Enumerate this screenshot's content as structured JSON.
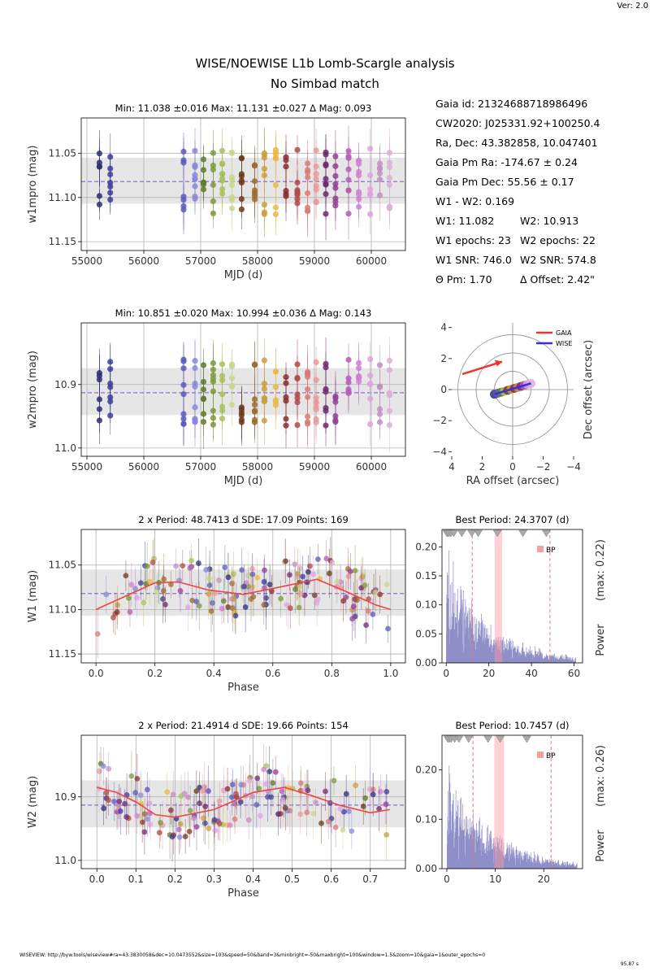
{
  "version": "Ver: 2.0",
  "title": "WISE/NOEWISE L1b Lomb-Scargle analysis",
  "subtitle": "No Simbad match",
  "footer_url": "WISEVIEW: http://byw.tools/wiseview#ra=43.3830058&dec=10.0473552&size=103&speed=50&band=3&minbright=-50&maxbright=100&window=1.5&zoom=10&gaia=1&outer_epochs=0",
  "runtime": "95.87 s",
  "info": [
    {
      "id": "gaia-id",
      "text": "Gaia id: 21324688718986496"
    },
    {
      "id": "cw2020",
      "text": "CW2020: J025331.92+100250.4"
    },
    {
      "id": "radec",
      "text": "Ra, Dec: 43.382858, 10.047401"
    },
    {
      "id": "pmra",
      "text": "Gaia Pm Ra: -174.67 ± 0.24"
    },
    {
      "id": "pmdec",
      "text": "Gaia Pm Dec: 55.56 ± 0.17"
    },
    {
      "id": "w1w2",
      "text": "W1 - W2: 0.169"
    },
    {
      "id": "w1",
      "text": "W1: 11.082"
    },
    {
      "id": "w2",
      "text": "W2: 10.913"
    },
    {
      "id": "w1ep",
      "text": "W1 epochs: 23"
    },
    {
      "id": "w2ep",
      "text": "W2 epochs: 22"
    },
    {
      "id": "w1snr",
      "text": "W1 SNR: 746.0"
    },
    {
      "id": "w2snr",
      "text": "W2 SNR: 574.8"
    },
    {
      "id": "thetapm",
      "text": "Θ Pm: 1.70"
    },
    {
      "id": "offset",
      "text": "Δ Offset: 2.42\""
    }
  ],
  "chart_data": [
    {
      "id": "w1-lc",
      "type": "scatter",
      "title": "Min: 11.038 ±0.016     Max: 11.131 ±0.027     Δ Mag: 0.093",
      "xlabel": "MJD (d)",
      "ylabel": "w1mpro (mag)",
      "xlim": [
        54900,
        60600
      ],
      "ylim": [
        11.16,
        11.01
      ],
      "y_inverted": true,
      "xticks": [
        55000,
        56000,
        57000,
        58000,
        59000,
        60000
      ],
      "yticks": [
        11.05,
        11.1,
        11.15
      ],
      "ytick_labels": [
        "11.05",
        "11.10",
        "11.15"
      ],
      "mean": 11.082,
      "band": [
        11.055,
        11.107
      ],
      "grid": true
    },
    {
      "id": "w2-lc",
      "type": "scatter",
      "title": "Min: 10.851 ±0.020     Max: 10.994 ±0.036     Δ Mag: 0.143",
      "xlabel": "MJD (d)",
      "ylabel": "w2mpro (mag)",
      "xlim": [
        54900,
        60600
      ],
      "ylim": [
        11.013,
        10.803
      ],
      "y_inverted": true,
      "xticks": [
        55000,
        56000,
        57000,
        58000,
        59000,
        60000
      ],
      "yticks": [
        10.9,
        11.0
      ],
      "ytick_labels": [
        "10.9",
        "11.0"
      ],
      "mean": 10.913,
      "band": [
        10.874,
        10.948
      ],
      "grid": true
    },
    {
      "id": "offset-plot",
      "type": "scatter",
      "xlabel": "RA offset (arcsec)",
      "ylabel": "Dec offset (arcsec)",
      "xlim": [
        4,
        -4
      ],
      "ylim": [
        -4.3,
        4.3
      ],
      "ticks": [
        -4,
        -2,
        0,
        2,
        4
      ],
      "tick_labels": [
        "−4",
        "−2",
        "0",
        "2",
        "4"
      ],
      "x_tick_labels": [
        "4",
        "2",
        "0",
        "−2",
        "−4"
      ],
      "rings": [
        1,
        2,
        3
      ],
      "legend": [
        {
          "name": "GAIA",
          "color": "#ee3333"
        },
        {
          "name": "WISE",
          "color": "#3333dd"
        }
      ],
      "gaia_vector": {
        "from": [
          3.3,
          1.0
        ],
        "to": [
          0.7,
          1.8
        ]
      },
      "wise_vector": {
        "from": [
          1.2,
          -0.3
        ],
        "to": [
          -1.2,
          0.4
        ]
      }
    },
    {
      "id": "w1-phase",
      "type": "scatter",
      "title": "2 x Period: 48.7413 d    SDE: 17.09    Points: 169",
      "xlabel": "Phase",
      "ylabel": "W1 (mag)",
      "xlim": [
        -0.05,
        1.05
      ],
      "ylim": [
        11.16,
        11.01
      ],
      "y_inverted": true,
      "xticks": [
        0,
        0.2,
        0.4,
        0.6,
        0.8,
        1.0
      ],
      "xtick_labels": [
        "0.0",
        "0.2",
        "0.4",
        "0.6",
        "0.8",
        "1.0"
      ],
      "yticks": [
        11.05,
        11.1,
        11.15
      ],
      "ytick_labels": [
        "11.05",
        "11.10",
        "11.15"
      ],
      "mean": 11.082,
      "band": [
        11.055,
        11.107
      ],
      "model": {
        "x": [
          0,
          0.1,
          0.2,
          0.28,
          0.38,
          0.5,
          0.62,
          0.75,
          0.85,
          0.95,
          1.0
        ],
        "y": [
          11.1,
          11.085,
          11.07,
          11.069,
          11.078,
          11.083,
          11.075,
          11.066,
          11.08,
          11.095,
          11.1
        ]
      }
    },
    {
      "id": "w1-periodogram",
      "type": "line",
      "title": "Best Period: 24.3707 (d)",
      "xlabel": "",
      "ylabel": "Power",
      "ylabel2": "(max: 0.22)",
      "xlim": [
        -2,
        64
      ],
      "ylim": [
        0,
        0.23
      ],
      "xticks": [
        0,
        20,
        40,
        60
      ],
      "xtick_labels": [
        "0",
        "20",
        "40",
        "60"
      ],
      "yticks": [
        0,
        0.05,
        0.1,
        0.15,
        0.2
      ],
      "ytick_labels": [
        "0.00",
        "0.05",
        "0.10",
        "0.15",
        "0.20"
      ],
      "best_period": 24.3707,
      "band": [
        22.7,
        26.3
      ],
      "dashed": [
        12.2,
        48.7
      ],
      "legend": [
        {
          "name": "BP",
          "color": "#f4a0a0"
        }
      ],
      "markers": [
        0.3,
        0.8,
        1.4,
        2.2,
        3.5,
        7.3,
        12.0,
        15.0,
        24.0,
        36.0,
        47.0
      ]
    },
    {
      "id": "w2-phase",
      "type": "scatter",
      "title": "2 x Period: 21.4914 d    SDE: 19.66    Points: 154",
      "xlabel": "Phase",
      "ylabel": "W2 (mag)",
      "xlim": [
        -0.04,
        0.79
      ],
      "ylim": [
        11.013,
        10.803
      ],
      "y_inverted": true,
      "xticks": [
        0,
        0.1,
        0.2,
        0.3,
        0.4,
        0.5,
        0.6,
        0.7
      ],
      "xtick_labels": [
        "0.0",
        "0.1",
        "0.2",
        "0.3",
        "0.4",
        "0.5",
        "0.6",
        "0.7"
      ],
      "yticks": [
        10.9,
        11.0
      ],
      "ytick_labels": [
        "10.9",
        "11.0"
      ],
      "mean": 10.913,
      "band": [
        10.874,
        10.948
      ],
      "model": {
        "x": [
          0,
          0.05,
          0.1,
          0.15,
          0.2,
          0.3,
          0.4,
          0.48,
          0.55,
          0.62,
          0.7,
          0.75
        ],
        "y": [
          10.885,
          10.893,
          10.908,
          10.928,
          10.932,
          10.92,
          10.893,
          10.885,
          10.898,
          10.913,
          10.925,
          10.92
        ]
      }
    },
    {
      "id": "w2-periodogram",
      "type": "line",
      "title": "Best Period: 10.7457 (d)",
      "xlabel": "",
      "ylabel": "Power",
      "ylabel2": "(max: 0.26)",
      "xlim": [
        -1,
        28
      ],
      "ylim": [
        0,
        0.27
      ],
      "xticks": [
        0,
        10,
        20
      ],
      "xtick_labels": [
        "0",
        "10",
        "20"
      ],
      "yticks": [
        0,
        0.1,
        0.2
      ],
      "ytick_labels": [
        "0.00",
        "0.10",
        "0.20"
      ],
      "best_period": 10.7457,
      "band": [
        9.8,
        11.8
      ],
      "dashed": [
        5.4,
        21.5
      ],
      "legend": [
        {
          "name": "BP",
          "color": "#f4a0a0"
        }
      ],
      "markers": [
        0.2,
        0.5,
        0.9,
        1.6,
        2.5,
        4.5,
        8.5,
        11.0,
        16.5
      ]
    }
  ]
}
